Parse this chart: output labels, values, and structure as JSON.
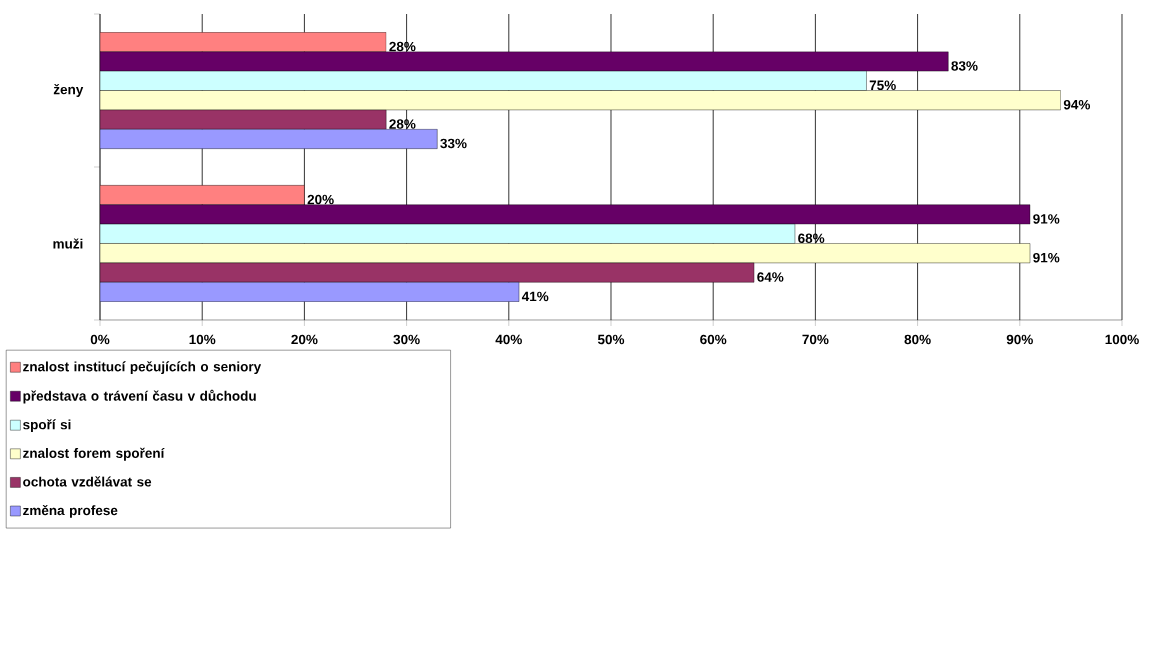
{
  "chart_data": {
    "type": "bar",
    "orientation": "horizontal",
    "categories": [
      "ženy",
      "muži"
    ],
    "series": [
      {
        "name": "znalost institucí pečujících o seniory",
        "color": "#ff8080",
        "values": [
          28,
          20
        ],
        "value_labels": [
          "28%",
          "20%"
        ]
      },
      {
        "name": "představa o trávení času v důchodu",
        "color": "#660066",
        "values": [
          83,
          91
        ],
        "value_labels": [
          "83%",
          "91%"
        ]
      },
      {
        "name": "spoří si",
        "color": "#ccffff",
        "values": [
          75,
          68
        ],
        "value_labels": [
          "75%",
          "68%"
        ]
      },
      {
        "name": "znalost forem spoření",
        "color": "#ffffcc",
        "values": [
          94,
          91
        ],
        "value_labels": [
          "94%",
          "91%"
        ]
      },
      {
        "name": "ochota vzdělávat se",
        "color": "#993366",
        "values": [
          28,
          64
        ],
        "value_labels": [
          "28%",
          "64%"
        ]
      },
      {
        "name": "změna profese",
        "color": "#9999ff",
        "values": [
          33,
          41
        ],
        "value_labels": [
          "33%",
          "41%"
        ]
      }
    ],
    "xlim": [
      0,
      100
    ],
    "xticks": [
      {
        "value": 0,
        "label": "0%"
      },
      {
        "value": 10,
        "label": "10%"
      },
      {
        "value": 20,
        "label": "20%"
      },
      {
        "value": 30,
        "label": "30%"
      },
      {
        "value": 40,
        "label": "40%"
      },
      {
        "value": 50,
        "label": "50%"
      },
      {
        "value": 60,
        "label": "60%"
      },
      {
        "value": 70,
        "label": "70%"
      },
      {
        "value": 80,
        "label": "80%"
      },
      {
        "value": 90,
        "label": "90%"
      },
      {
        "value": 100,
        "label": "100%"
      }
    ],
    "grid": "x",
    "legend": "bottom left"
  }
}
